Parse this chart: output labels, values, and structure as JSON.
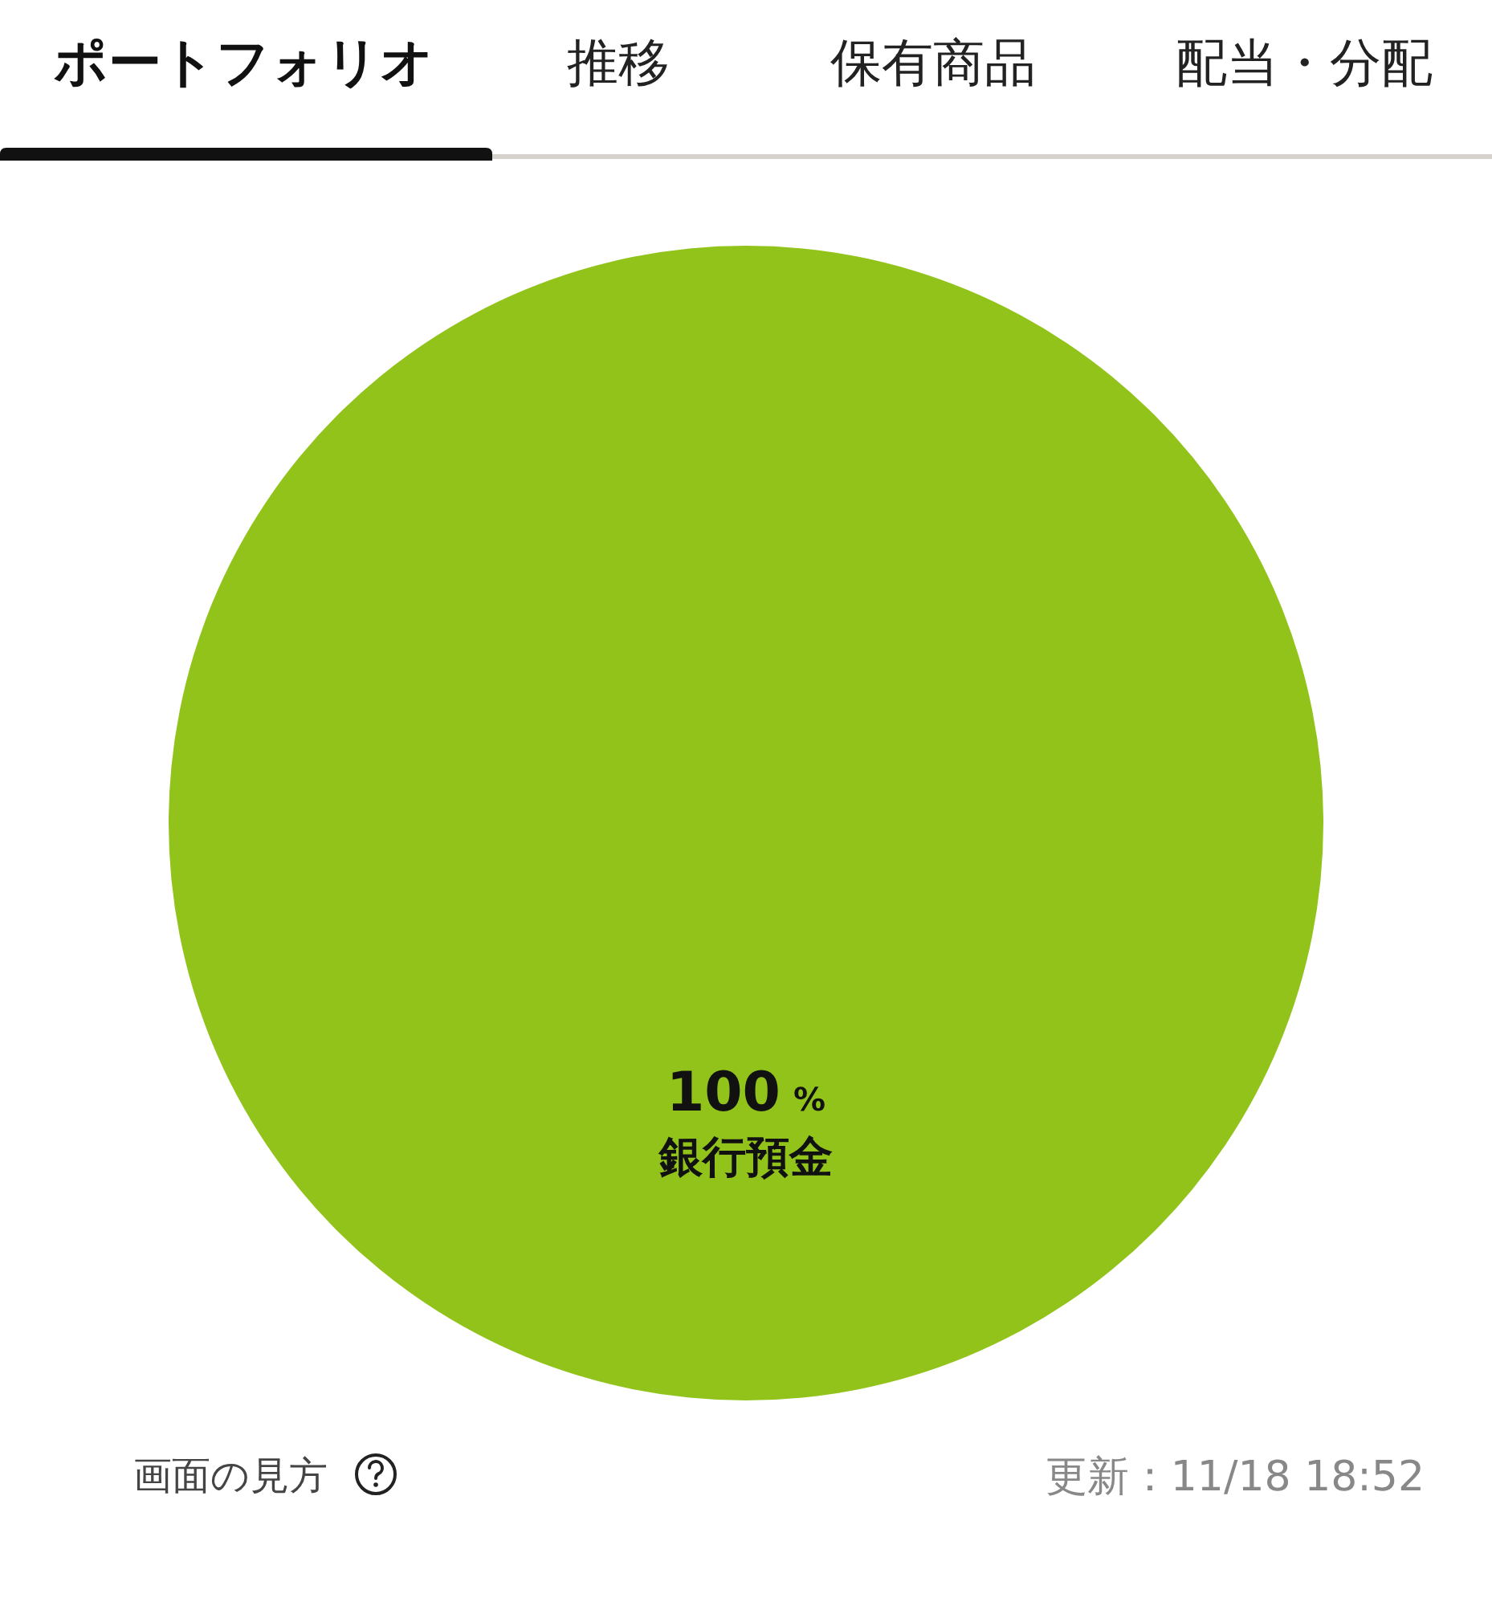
{
  "chart_data": {
    "type": "pie",
    "title": "ポートフォリオ",
    "annotations": [
      "推移",
      "保有商品",
      "配当・分配",
      "画面の見方",
      "更新：11/18 18:52"
    ],
    "categories": [
      "銀行預金"
    ],
    "values": [
      100
    ],
    "colors": [
      "#92c31a"
    ],
    "value_labels": [
      "100%"
    ],
    "legend": false
  }
}
